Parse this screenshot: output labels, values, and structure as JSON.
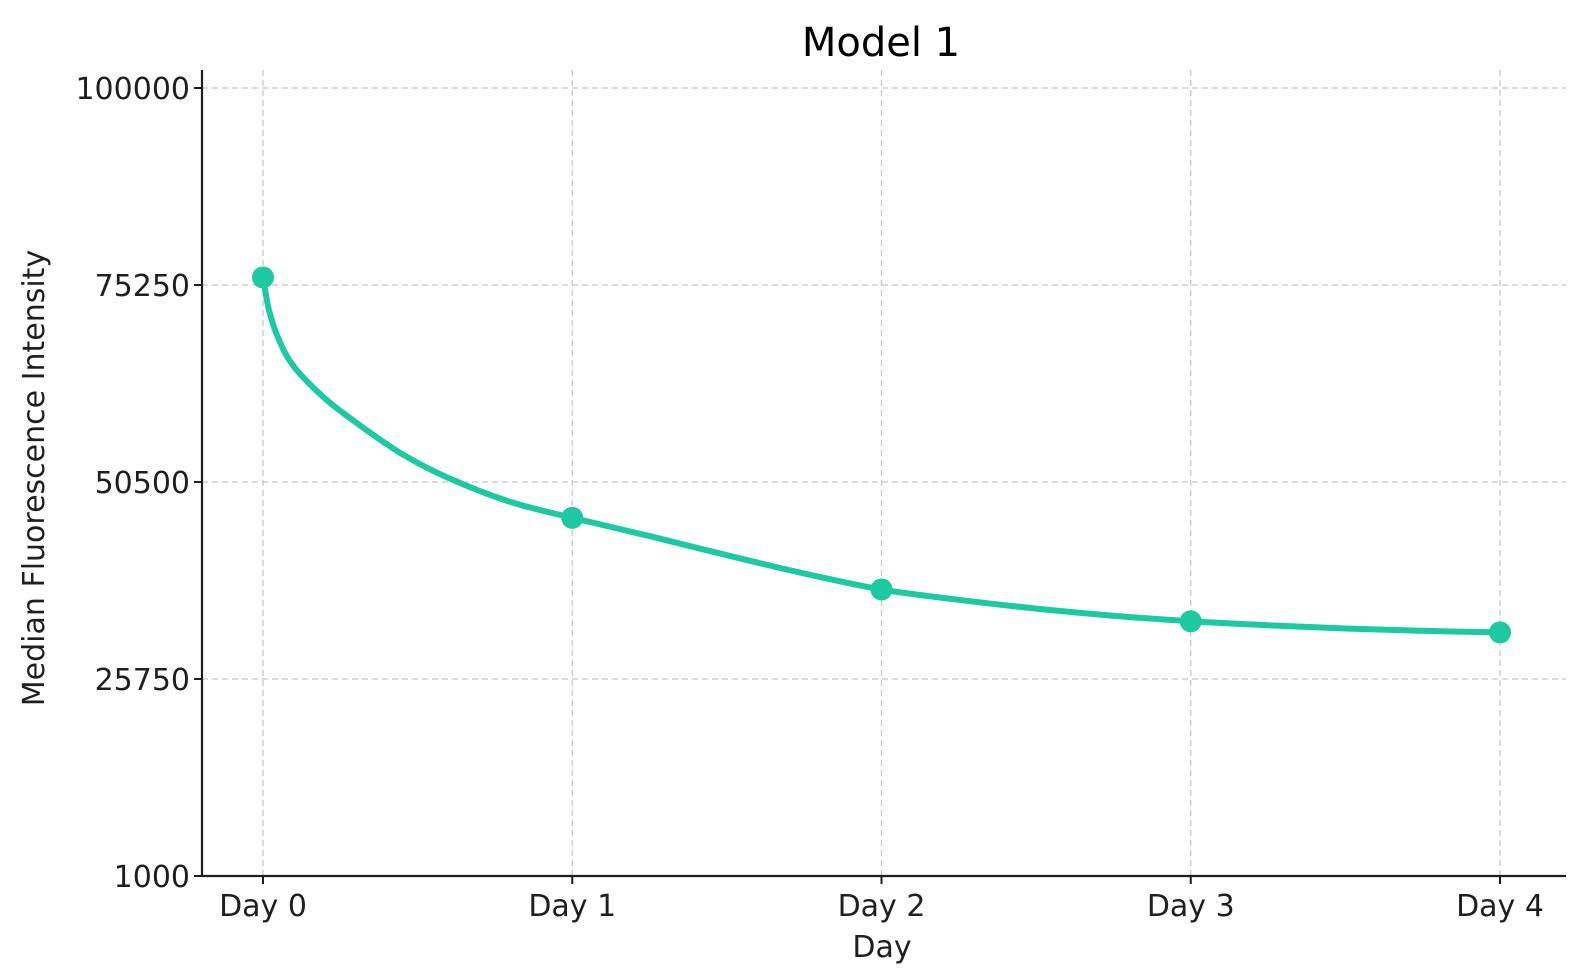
{
  "chart_data": {
    "type": "line",
    "title": "Model 1",
    "xlabel": "Day",
    "ylabel": "Median Fluorescence Intensity",
    "categories": [
      "Day 0",
      "Day 1",
      "Day 2",
      "Day 3",
      "Day 4"
    ],
    "series": [
      {
        "values": [
          76200,
          46000,
          37000,
          33000,
          31600
        ]
      }
    ],
    "curve_samples": [
      {
        "x": 0.0,
        "y": 76200
      },
      {
        "x": 0.02,
        "y": 72000
      },
      {
        "x": 0.05,
        "y": 68500
      },
      {
        "x": 0.1,
        "y": 65000
      },
      {
        "x": 0.2,
        "y": 61000
      },
      {
        "x": 0.3,
        "y": 58000
      },
      {
        "x": 0.45,
        "y": 54000
      },
      {
        "x": 0.6,
        "y": 51000
      },
      {
        "x": 0.8,
        "y": 48000
      },
      {
        "x": 1.0,
        "y": 46000
      },
      {
        "x": 1.25,
        "y": 43700
      },
      {
        "x": 1.5,
        "y": 41300
      },
      {
        "x": 1.75,
        "y": 39000
      },
      {
        "x": 2.0,
        "y": 37000
      },
      {
        "x": 2.25,
        "y": 35700
      },
      {
        "x": 2.5,
        "y": 34600
      },
      {
        "x": 2.75,
        "y": 33700
      },
      {
        "x": 3.0,
        "y": 33000
      },
      {
        "x": 3.25,
        "y": 32500
      },
      {
        "x": 3.5,
        "y": 32100
      },
      {
        "x": 3.75,
        "y": 31800
      },
      {
        "x": 4.0,
        "y": 31600
      }
    ],
    "yticks": [
      1000,
      25750,
      50500,
      75250,
      100000
    ],
    "ytick_labels": [
      "1000",
      "25750",
      "50500",
      "75250",
      "100000"
    ],
    "ylim": [
      1000,
      100000
    ],
    "xlim": [
      -0.2,
      4.2
    ],
    "grid": true,
    "legend": "none",
    "colors": {
      "series": "#1cc9a0",
      "grid": "#c8c8c8",
      "axis": "#1f1f1f"
    }
  }
}
